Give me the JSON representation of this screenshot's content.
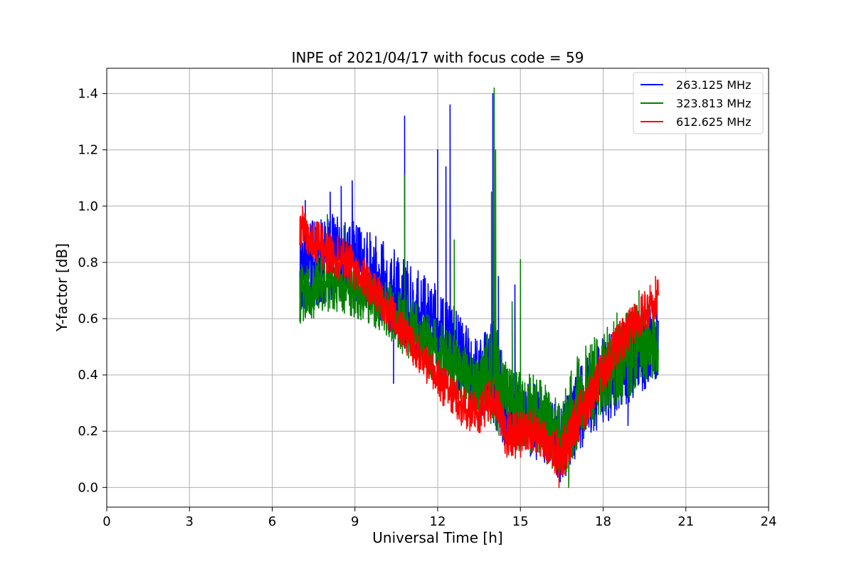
{
  "chart_data": {
    "type": "line",
    "title": "INPE of 2021/04/17 with focus code = 59",
    "xlabel": "Universal Time [h]",
    "ylabel": "Y-factor [dB]",
    "xlim": [
      0,
      24
    ],
    "ylim": [
      -0.07,
      1.49
    ],
    "xticks": [
      0,
      3,
      6,
      9,
      12,
      15,
      18,
      21,
      24
    ],
    "yticks": [
      0.0,
      0.2,
      0.4,
      0.6,
      0.8,
      1.0,
      1.2,
      1.4
    ],
    "grid": true,
    "legend_position": "top-right",
    "series": [
      {
        "name": "263.125 MHz",
        "color": "#0000ff",
        "envelope": [
          {
            "x": 7.0,
            "lo": 0.62,
            "hi": 0.95
          },
          {
            "x": 7.5,
            "lo": 0.64,
            "hi": 0.96
          },
          {
            "x": 8.0,
            "lo": 0.66,
            "hi": 0.98
          },
          {
            "x": 8.5,
            "lo": 0.68,
            "hi": 0.97
          },
          {
            "x": 9.0,
            "lo": 0.66,
            "hi": 0.95
          },
          {
            "x": 9.5,
            "lo": 0.62,
            "hi": 0.92
          },
          {
            "x": 10.0,
            "lo": 0.57,
            "hi": 0.88
          },
          {
            "x": 10.5,
            "lo": 0.52,
            "hi": 0.84
          },
          {
            "x": 11.0,
            "lo": 0.47,
            "hi": 0.8
          },
          {
            "x": 11.5,
            "lo": 0.43,
            "hi": 0.76
          },
          {
            "x": 12.0,
            "lo": 0.39,
            "hi": 0.72
          },
          {
            "x": 12.5,
            "lo": 0.35,
            "hi": 0.66
          },
          {
            "x": 13.0,
            "lo": 0.3,
            "hi": 0.58
          },
          {
            "x": 13.5,
            "lo": 0.26,
            "hi": 0.52
          },
          {
            "x": 14.0,
            "lo": 0.23,
            "hi": 0.6
          },
          {
            "x": 14.5,
            "lo": 0.12,
            "hi": 0.4
          },
          {
            "x": 15.0,
            "lo": 0.12,
            "hi": 0.4
          },
          {
            "x": 15.5,
            "lo": 0.1,
            "hi": 0.38
          },
          {
            "x": 16.0,
            "lo": 0.05,
            "hi": 0.34
          },
          {
            "x": 16.5,
            "lo": 0.01,
            "hi": 0.3
          },
          {
            "x": 17.0,
            "lo": 0.1,
            "hi": 0.4
          },
          {
            "x": 17.5,
            "lo": 0.18,
            "hi": 0.48
          },
          {
            "x": 18.0,
            "lo": 0.22,
            "hi": 0.54
          },
          {
            "x": 18.5,
            "lo": 0.26,
            "hi": 0.58
          },
          {
            "x": 19.0,
            "lo": 0.3,
            "hi": 0.62
          },
          {
            "x": 19.5,
            "lo": 0.34,
            "hi": 0.64
          },
          {
            "x": 20.0,
            "lo": 0.38,
            "hi": 0.66
          }
        ],
        "spikes": [
          {
            "x": 7.2,
            "y": 1.02
          },
          {
            "x": 8.1,
            "y": 1.05
          },
          {
            "x": 8.5,
            "y": 1.07
          },
          {
            "x": 8.9,
            "y": 1.09
          },
          {
            "x": 10.4,
            "y": 0.37
          },
          {
            "x": 10.8,
            "y": 1.32
          },
          {
            "x": 12.0,
            "y": 1.2
          },
          {
            "x": 12.3,
            "y": 1.14
          },
          {
            "x": 12.45,
            "y": 1.36
          },
          {
            "x": 14.0,
            "y": 1.4
          },
          {
            "x": 14.2,
            "y": 0.75
          },
          {
            "x": 14.8,
            "y": 0.72
          },
          {
            "x": 18.9,
            "y": 0.22
          }
        ]
      },
      {
        "name": "323.813 MHz",
        "color": "#008000",
        "envelope": [
          {
            "x": 7.0,
            "lo": 0.58,
            "hi": 0.8
          },
          {
            "x": 7.5,
            "lo": 0.6,
            "hi": 0.82
          },
          {
            "x": 8.0,
            "lo": 0.62,
            "hi": 0.83
          },
          {
            "x": 8.5,
            "lo": 0.62,
            "hi": 0.82
          },
          {
            "x": 9.0,
            "lo": 0.6,
            "hi": 0.8
          },
          {
            "x": 9.5,
            "lo": 0.57,
            "hi": 0.77
          },
          {
            "x": 10.0,
            "lo": 0.53,
            "hi": 0.74
          },
          {
            "x": 10.5,
            "lo": 0.49,
            "hi": 0.71
          },
          {
            "x": 11.0,
            "lo": 0.45,
            "hi": 0.68
          },
          {
            "x": 11.5,
            "lo": 0.41,
            "hi": 0.64
          },
          {
            "x": 12.0,
            "lo": 0.37,
            "hi": 0.6
          },
          {
            "x": 12.5,
            "lo": 0.33,
            "hi": 0.55
          },
          {
            "x": 13.0,
            "lo": 0.28,
            "hi": 0.5
          },
          {
            "x": 13.5,
            "lo": 0.24,
            "hi": 0.46
          },
          {
            "x": 14.0,
            "lo": 0.22,
            "hi": 0.62
          },
          {
            "x": 14.5,
            "lo": 0.14,
            "hi": 0.44
          },
          {
            "x": 15.0,
            "lo": 0.12,
            "hi": 0.42
          },
          {
            "x": 15.5,
            "lo": 0.12,
            "hi": 0.4
          },
          {
            "x": 16.0,
            "lo": 0.08,
            "hi": 0.36
          },
          {
            "x": 16.5,
            "lo": 0.02,
            "hi": 0.32
          },
          {
            "x": 17.0,
            "lo": 0.12,
            "hi": 0.46
          },
          {
            "x": 17.5,
            "lo": 0.2,
            "hi": 0.52
          },
          {
            "x": 18.0,
            "lo": 0.24,
            "hi": 0.56
          },
          {
            "x": 18.5,
            "lo": 0.28,
            "hi": 0.6
          },
          {
            "x": 19.0,
            "lo": 0.32,
            "hi": 0.64
          },
          {
            "x": 19.5,
            "lo": 0.36,
            "hi": 0.66
          },
          {
            "x": 20.0,
            "lo": 0.4,
            "hi": 0.68
          }
        ],
        "spikes": [
          {
            "x": 8.0,
            "y": 0.97
          },
          {
            "x": 8.6,
            "y": 0.93
          },
          {
            "x": 10.8,
            "y": 1.11
          },
          {
            "x": 12.6,
            "y": 0.88
          },
          {
            "x": 13.95,
            "y": 1.05
          },
          {
            "x": 14.05,
            "y": 1.42
          },
          {
            "x": 14.1,
            "y": 1.2
          },
          {
            "x": 14.7,
            "y": 0.66
          },
          {
            "x": 15.0,
            "y": 0.81
          },
          {
            "x": 16.75,
            "y": 0.0
          },
          {
            "x": 18.5,
            "y": 0.62
          },
          {
            "x": 19.3,
            "y": 0.7
          }
        ]
      },
      {
        "name": "612.625 MHz",
        "color": "#ff0000",
        "envelope": [
          {
            "x": 7.0,
            "lo": 0.84,
            "hi": 0.99
          },
          {
            "x": 7.5,
            "lo": 0.8,
            "hi": 0.96
          },
          {
            "x": 8.0,
            "lo": 0.76,
            "hi": 0.92
          },
          {
            "x": 8.5,
            "lo": 0.73,
            "hi": 0.89
          },
          {
            "x": 9.0,
            "lo": 0.7,
            "hi": 0.85
          },
          {
            "x": 9.5,
            "lo": 0.65,
            "hi": 0.8
          },
          {
            "x": 10.0,
            "lo": 0.59,
            "hi": 0.74
          },
          {
            "x": 10.5,
            "lo": 0.52,
            "hi": 0.66
          },
          {
            "x": 11.0,
            "lo": 0.45,
            "hi": 0.58
          },
          {
            "x": 11.5,
            "lo": 0.38,
            "hi": 0.52
          },
          {
            "x": 12.0,
            "lo": 0.31,
            "hi": 0.46
          },
          {
            "x": 12.5,
            "lo": 0.25,
            "hi": 0.4
          },
          {
            "x": 13.0,
            "lo": 0.2,
            "hi": 0.35
          },
          {
            "x": 13.5,
            "lo": 0.19,
            "hi": 0.34
          },
          {
            "x": 14.0,
            "lo": 0.25,
            "hi": 0.4
          },
          {
            "x": 14.5,
            "lo": 0.1,
            "hi": 0.27
          },
          {
            "x": 15.0,
            "lo": 0.1,
            "hi": 0.27
          },
          {
            "x": 15.5,
            "lo": 0.12,
            "hi": 0.28
          },
          {
            "x": 16.0,
            "lo": 0.08,
            "hi": 0.25
          },
          {
            "x": 16.5,
            "lo": 0.02,
            "hi": 0.2
          },
          {
            "x": 17.0,
            "lo": 0.14,
            "hi": 0.32
          },
          {
            "x": 17.5,
            "lo": 0.24,
            "hi": 0.4
          },
          {
            "x": 18.0,
            "lo": 0.33,
            "hi": 0.49
          },
          {
            "x": 18.5,
            "lo": 0.42,
            "hi": 0.58
          },
          {
            "x": 19.0,
            "lo": 0.49,
            "hi": 0.64
          },
          {
            "x": 19.5,
            "lo": 0.55,
            "hi": 0.7
          },
          {
            "x": 20.0,
            "lo": 0.6,
            "hi": 0.75
          }
        ],
        "spikes": [
          {
            "x": 7.1,
            "y": 1.0
          },
          {
            "x": 16.4,
            "y": 0.0
          },
          {
            "x": 19.9,
            "y": 0.75
          }
        ]
      }
    ]
  }
}
